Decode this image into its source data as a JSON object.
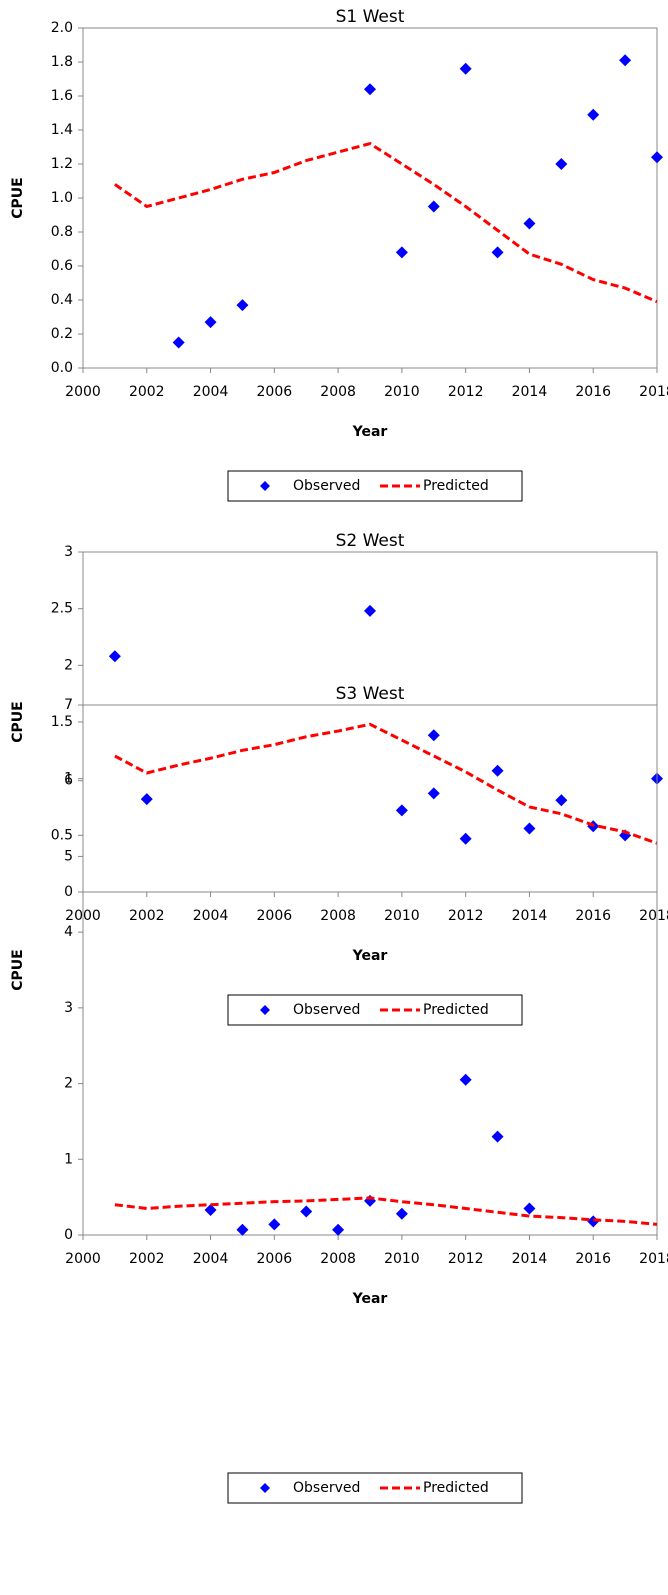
{
  "chart_data": [
    {
      "type": "line",
      "title": "S1 West",
      "x_label": "Year",
      "y_label": "CPUE",
      "x": [
        2001,
        2002,
        2003,
        2004,
        2005,
        2006,
        2007,
        2008,
        2009,
        2010,
        2011,
        2012,
        2013,
        2014,
        2015,
        2016,
        2017,
        2018
      ],
      "series": [
        {
          "name": "Observed",
          "color": "#0000ff",
          "style": "markers",
          "values": [
            null,
            null,
            0.15,
            0.27,
            0.37,
            null,
            null,
            null,
            1.64,
            0.68,
            0.95,
            1.76,
            0.68,
            0.85,
            1.2,
            1.49,
            1.81,
            1.24
          ]
        },
        {
          "name": "Predicted",
          "color": "#ff0000",
          "style": "dashed",
          "values": [
            1.08,
            0.95,
            1.0,
            1.05,
            1.11,
            1.15,
            1.22,
            1.27,
            1.32,
            1.2,
            1.08,
            0.95,
            0.81,
            0.67,
            0.61,
            0.52,
            0.47,
            0.39
          ]
        }
      ],
      "xlim": [
        2000,
        2018
      ],
      "xticks": [
        2000,
        2002,
        2004,
        2006,
        2008,
        2010,
        2012,
        2014,
        2016,
        2018
      ],
      "ylim": [
        0,
        2
      ],
      "yticks": [
        {
          "value": 0,
          "label": "0.0"
        },
        {
          "value": 0.2,
          "label": "0.2"
        },
        {
          "value": 0.4,
          "label": "0.4"
        },
        {
          "value": 0.6,
          "label": "0.6"
        },
        {
          "value": 0.8,
          "label": "0.8"
        },
        {
          "value": 1,
          "label": "1.0"
        },
        {
          "value": 1.2,
          "label": "1.2"
        },
        {
          "value": 1.4,
          "label": "1.4"
        },
        {
          "value": 1.6,
          "label": "1.6"
        },
        {
          "value": 1.8,
          "label": "1.8"
        },
        {
          "value": 2,
          "label": "2.0"
        }
      ],
      "grid": false,
      "legend": "bottom"
    },
    {
      "type": "line",
      "title": "S2 West",
      "x_label": "Year",
      "y_label": "CPUE",
      "x": [
        2001,
        2002,
        2003,
        2004,
        2005,
        2006,
        2007,
        2008,
        2009,
        2010,
        2011,
        2012,
        2013,
        2014,
        2015,
        2016,
        2017,
        2018
      ],
      "series": [
        {
          "name": "Observed",
          "color": "#0000ff",
          "style": "markers",
          "values": [
            2.08,
            0.82,
            null,
            null,
            null,
            null,
            null,
            null,
            2.48,
            0.72,
            0.87,
            0.47,
            1.07,
            0.56,
            0.81,
            0.58,
            0.5,
            1.0
          ]
        },
        {
          "name": "Predicted",
          "color": "#ff0000",
          "style": "dashed",
          "values": [
            1.2,
            1.05,
            1.12,
            1.18,
            1.25,
            1.3,
            1.37,
            1.42,
            1.48,
            1.34,
            1.2,
            1.06,
            0.9,
            0.75,
            0.69,
            0.59,
            0.53,
            0.43
          ]
        }
      ],
      "xlim": [
        2000,
        2018
      ],
      "xticks": [
        2000,
        2002,
        2004,
        2006,
        2008,
        2010,
        2012,
        2014,
        2016,
        2018
      ],
      "ylim": [
        0,
        3
      ],
      "yticks": [
        0,
        0.5,
        1,
        1.5,
        2,
        2.5,
        3
      ],
      "grid": false,
      "legend": "bottom"
    },
    {
      "type": "line",
      "title": "S3 West",
      "x_label": "Year",
      "y_label": "CPUE",
      "x": [
        2001,
        2002,
        2003,
        2004,
        2005,
        2006,
        2007,
        2008,
        2009,
        2010,
        2011,
        2012,
        2013,
        2014,
        2015,
        2016,
        2017,
        2018
      ],
      "series": [
        {
          "name": "Observed",
          "color": "#0000ff",
          "style": "markers",
          "values": [
            null,
            null,
            null,
            0.33,
            0.07,
            0.14,
            0.31,
            0.07,
            0.45,
            0.28,
            6.6,
            2.05,
            1.3,
            0.35,
            null,
            0.18,
            null,
            null
          ]
        },
        {
          "name": "Predicted",
          "color": "#ff0000",
          "style": "dashed",
          "values": [
            0.4,
            0.35,
            0.38,
            0.4,
            0.42,
            0.44,
            0.45,
            0.47,
            0.49,
            0.44,
            0.4,
            0.35,
            0.3,
            0.25,
            0.23,
            0.2,
            0.18,
            0.14
          ]
        }
      ],
      "xlim": [
        2000,
        2018
      ],
      "xticks": [
        2000,
        2002,
        2004,
        2006,
        2008,
        2010,
        2012,
        2014,
        2016,
        2018
      ],
      "ylim": [
        0,
        7
      ],
      "yticks": [
        0,
        1,
        2,
        3,
        4,
        5,
        6,
        7
      ],
      "grid": false,
      "legend": "bottom"
    }
  ]
}
